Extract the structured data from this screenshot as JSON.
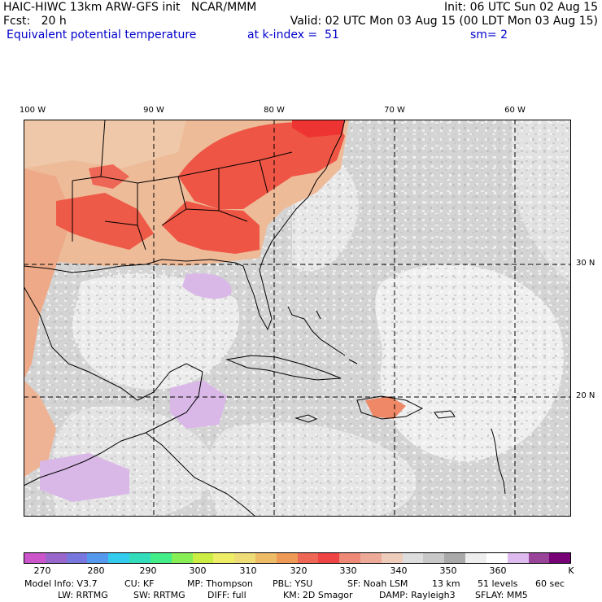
{
  "header": {
    "line1_left": "HAIC-HIWC 13km ARW-GFS init   NCAR/MMM",
    "line1_right": "Init: 06 UTC Sun 02 Aug 15",
    "line2_left": "Fcst:   20 h",
    "line2_right": "Valid: 02 UTC Mon 03 Aug 15 (00 LDT Mon 03 Aug 15)",
    "line3_field": "Equivalent potential temperature",
    "line3_level": "at k-index =  51",
    "line3_smooth": "sm= 2"
  },
  "map": {
    "lon_labels": [
      "100 W",
      "90 W",
      "80 W",
      "70 W",
      "60 W"
    ],
    "lat_labels": [
      "30 N",
      "20 N"
    ],
    "grid_style": "dashed",
    "regions": [
      {
        "name": "southeast-us-high-theta-e",
        "value_range": "320-340 K"
      },
      {
        "name": "gulf-of-mexico",
        "value_range": "350-360 K"
      },
      {
        "name": "western-atlantic",
        "value_range": "350-360 K"
      },
      {
        "name": "caribbean",
        "value_range": "350-365 K"
      }
    ]
  },
  "colorbar": {
    "colors": [
      "#cc55cc",
      "#9966cc",
      "#7777dd",
      "#5599ee",
      "#33ccee",
      "#33ddbb",
      "#44ee88",
      "#88ee55",
      "#ccee44",
      "#eeee66",
      "#eedd77",
      "#eebb66",
      "#ee9955",
      "#ee6655",
      "#ee4444",
      "#ee8877",
      "#eeaa99",
      "#eeccbb",
      "#dddddd",
      "#c8c8c8",
      "#aaaaaa",
      "#eeeeee",
      "#ffffff",
      "#ddbbee",
      "#994499",
      "#770077"
    ],
    "tick_labels": [
      "270",
      "280",
      "290",
      "300",
      "310",
      "320",
      "330",
      "340",
      "350",
      "360",
      "K"
    ]
  },
  "footer": {
    "line1": [
      "Model Info: V3.7",
      "CU: KF",
      "MP: Thompson",
      "PBL: YSU",
      "SF: Noah LSM",
      "13 km",
      "51 levels",
      "60 sec"
    ],
    "line2": [
      "LW: RRTMG",
      "SW: RRTMG",
      "DIFF: full",
      "KM: 2D Smagor",
      "DAMP: Rayleigh3",
      "SFLAY: MM5"
    ]
  }
}
